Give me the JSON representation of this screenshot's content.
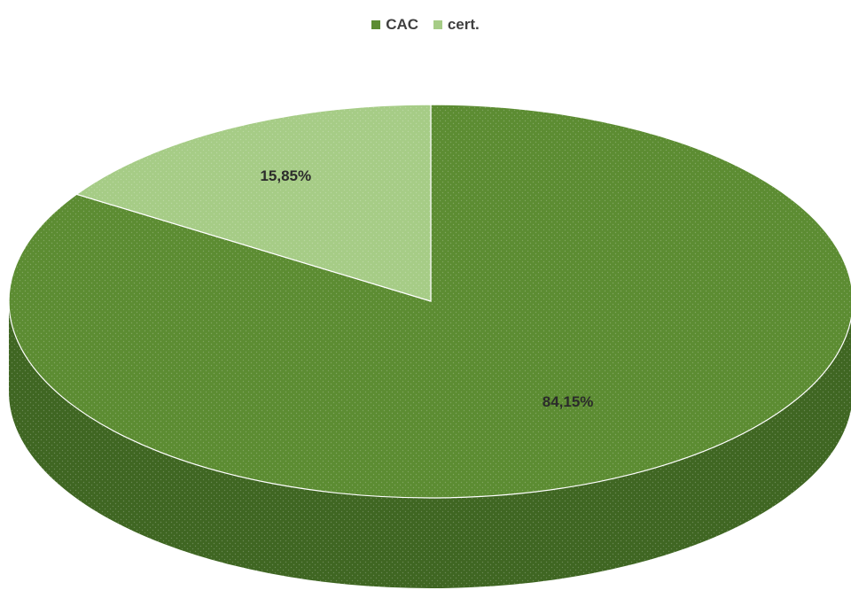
{
  "chart_data": {
    "type": "pie",
    "labels": [
      "CAC",
      "cert."
    ],
    "values": [
      84.15,
      15.85
    ],
    "data_labels": [
      "84,15%",
      "15,85%"
    ],
    "colors": [
      "#5c8c32",
      "#a6cc86"
    ],
    "side_colors": [
      "#3f6622",
      "#7a9c5c"
    ],
    "legend_position": "top",
    "style": "3d"
  }
}
